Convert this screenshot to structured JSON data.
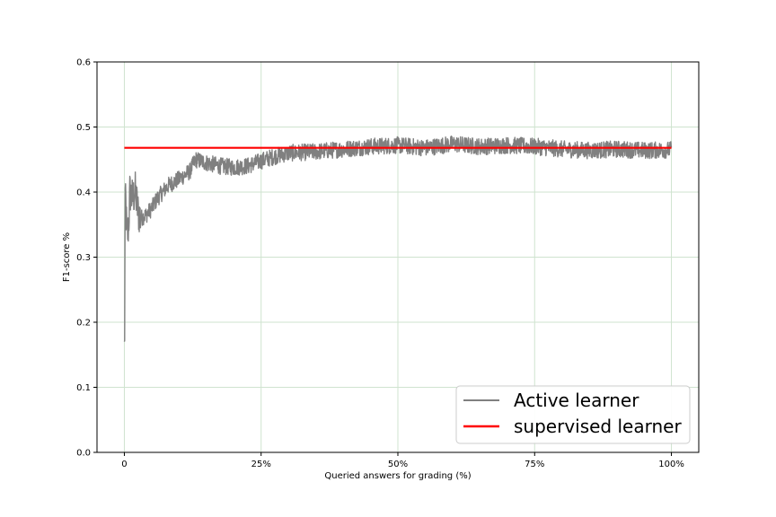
{
  "chart_data": {
    "type": "line",
    "xlabel": "Queried answers for grading (%)",
    "ylabel": "F1-score %",
    "xlim": [
      -5,
      105
    ],
    "ylim": [
      0.0,
      0.6
    ],
    "x_ticks": [
      0,
      25,
      50,
      75,
      100
    ],
    "x_tick_labels": [
      "0",
      "25%",
      "50%",
      "75%",
      "100%"
    ],
    "y_ticks": [
      0.0,
      0.1,
      0.2,
      0.3,
      0.4,
      0.5,
      0.6
    ],
    "y_tick_labels": [
      "0.0",
      "0.1",
      "0.2",
      "0.3",
      "0.4",
      "0.5",
      "0.6"
    ],
    "grid": true,
    "legend_position": "bottom-right",
    "series": [
      {
        "name": "Active learner",
        "color": "#808080",
        "style": "noisy",
        "x": [
          0,
          0.05,
          0.1,
          0.2,
          0.3,
          0.5,
          0.8,
          1.0,
          1.5,
          2,
          2.5,
          3,
          4,
          5,
          6,
          7,
          8,
          10,
          12,
          13,
          15,
          17.5,
          20,
          22.5,
          25,
          27.5,
          30,
          35,
          40,
          45,
          50,
          55,
          60,
          65,
          70,
          75,
          80,
          85,
          90,
          95,
          100
        ],
        "y": [
          0.16,
          0.17,
          0.3,
          0.41,
          0.37,
          0.33,
          0.35,
          0.4,
          0.39,
          0.4,
          0.37,
          0.36,
          0.365,
          0.375,
          0.39,
          0.4,
          0.41,
          0.42,
          0.432,
          0.45,
          0.445,
          0.44,
          0.438,
          0.44,
          0.448,
          0.455,
          0.46,
          0.462,
          0.466,
          0.47,
          0.472,
          0.468,
          0.474,
          0.47,
          0.472,
          0.47,
          0.466,
          0.464,
          0.466,
          0.464,
          0.465
        ],
        "noise_amplitude": 0.013
      },
      {
        "name": "supervised learner",
        "color": "#ff0000",
        "style": "solid",
        "x": [
          0,
          100
        ],
        "y": [
          0.468,
          0.468
        ]
      }
    ]
  }
}
